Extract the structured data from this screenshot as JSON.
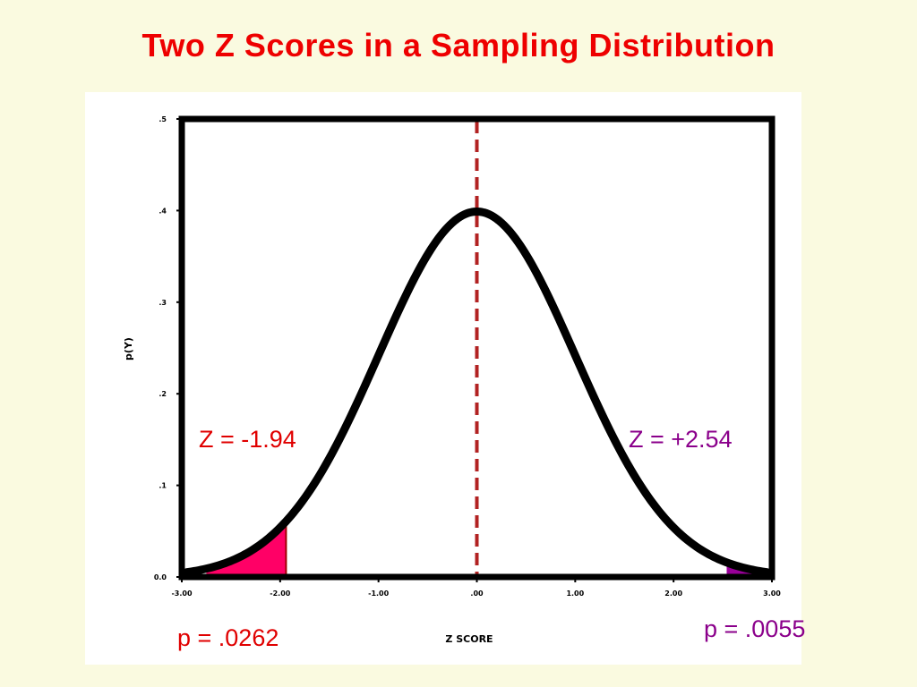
{
  "slide": {
    "title": "Two Z Scores in a Sampling Distribution"
  },
  "colors": {
    "title": "#ee0000",
    "background": "#fafae0",
    "left_tail": "#ff0066",
    "right_tail": "#990099",
    "mean_line": "#b22222",
    "left_text": "#e00000",
    "right_text": "#8b008b"
  },
  "chart_data": {
    "type": "area",
    "curve": "standard normal density",
    "xlabel": "Z SCORE",
    "ylabel": "p(Y)",
    "xlim": [
      -3.0,
      3.0
    ],
    "ylim": [
      0.0,
      0.5
    ],
    "x_ticks": [
      "-3.00",
      "-2.00",
      "-1.00",
      ".00",
      "1.00",
      "2.00",
      "3.00"
    ],
    "y_ticks": [
      "0.0",
      ".1",
      ".2",
      ".3",
      ".4",
      ".5"
    ],
    "mean_line": 0.0,
    "regions": [
      {
        "from": -2.75,
        "to": -1.94,
        "color": "#ff0066"
      },
      {
        "from": 2.54,
        "to": 2.95,
        "color": "#990099"
      }
    ],
    "annotations": {
      "left_z": "Z = -1.94",
      "right_z": "Z = +2.54",
      "left_p": "p = .0262",
      "right_p": "p = .0055"
    }
  }
}
